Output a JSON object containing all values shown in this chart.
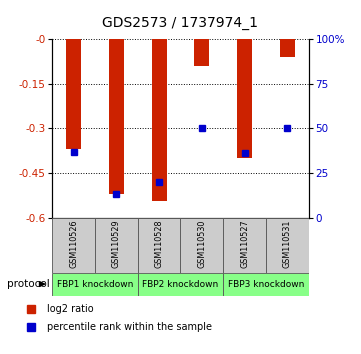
{
  "title": "GDS2573 / 1737974_1",
  "samples": [
    "GSM110526",
    "GSM110529",
    "GSM110528",
    "GSM110530",
    "GSM110527",
    "GSM110531"
  ],
  "log2_ratio": [
    -0.37,
    -0.52,
    -0.545,
    -0.09,
    -0.4,
    -0.06
  ],
  "percentile_rank": [
    37,
    13,
    20,
    50,
    36,
    50
  ],
  "groups": [
    {
      "label": "FBP1 knockdown",
      "indices": [
        0,
        1
      ],
      "color": "#88ff88"
    },
    {
      "label": "FBP2 knockdown",
      "indices": [
        2,
        3
      ],
      "color": "#88ff88"
    },
    {
      "label": "FBP3 knockdown",
      "indices": [
        4,
        5
      ],
      "color": "#88ff88"
    }
  ],
  "left_ylim": [
    -0.6,
    0.0
  ],
  "left_yticks": [
    0.0,
    -0.15,
    -0.3,
    -0.45,
    -0.6
  ],
  "right_ylim": [
    0,
    100
  ],
  "right_yticks": [
    0,
    25,
    50,
    75,
    100
  ],
  "right_yticklabels": [
    "0",
    "25",
    "50",
    "75",
    "100%"
  ],
  "bar_color": "#cc2200",
  "dot_color": "#0000cc",
  "background_color": "#ffffff",
  "plot_bg_color": "#ffffff",
  "sample_bg_color": "#cccccc",
  "title_fontsize": 10,
  "tick_fontsize": 7.5,
  "bar_width": 0.35
}
